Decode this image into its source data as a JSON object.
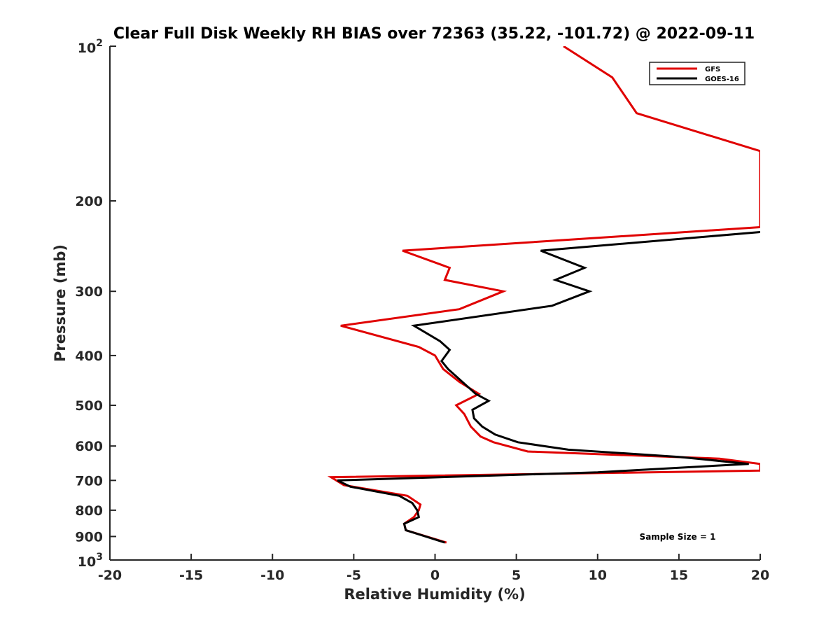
{
  "chart_data": {
    "type": "line",
    "title": "Clear Full Disk Weekly RH BIAS over 72363 (35.22, -101.72) @ 2022-09-11",
    "xlabel": "Relative Humidity (%)",
    "ylabel": "Pressure (mb)",
    "xlim": [
      -20,
      20
    ],
    "ylim": [
      100,
      1000
    ],
    "y_scale": "log",
    "y_reversed": true,
    "grid": false,
    "legend_position": "top-right",
    "x_ticks": [
      -20,
      -15,
      -10,
      -5,
      0,
      5,
      10,
      15,
      20
    ],
    "x_tick_labels": [
      "-20",
      "-15",
      "-10",
      "-5",
      "0",
      "5",
      "10",
      "15",
      "20"
    ],
    "y_ticks": [
      200,
      300,
      400,
      500,
      600,
      700,
      800,
      900
    ],
    "y_tick_labels": [
      "200",
      "300",
      "400",
      "500",
      "600",
      "700",
      "800",
      "900"
    ],
    "y_tick_exp": [
      {
        "value": 100,
        "base": "10",
        "exp": "2"
      },
      {
        "value": 1000,
        "base": "10",
        "exp": "3"
      }
    ],
    "annotation": "Sample Size = 1",
    "series": [
      {
        "name": "GFS",
        "color": "#e00000",
        "points": [
          {
            "x": 7.9,
            "y": 100
          },
          {
            "x": 10.9,
            "y": 115
          },
          {
            "x": 12.4,
            "y": 135
          },
          {
            "x": 20.0,
            "y": 160
          },
          {
            "x": 20.0,
            "y": 225
          },
          {
            "x": -2.0,
            "y": 250
          },
          {
            "x": 0.9,
            "y": 270
          },
          {
            "x": 0.6,
            "y": 285
          },
          {
            "x": 4.2,
            "y": 300
          },
          {
            "x": 1.5,
            "y": 325
          },
          {
            "x": -5.8,
            "y": 350
          },
          {
            "x": -1.0,
            "y": 385
          },
          {
            "x": 0.0,
            "y": 400
          },
          {
            "x": 0.5,
            "y": 425
          },
          {
            "x": 1.5,
            "y": 450
          },
          {
            "x": 2.7,
            "y": 475
          },
          {
            "x": 1.3,
            "y": 500
          },
          {
            "x": 1.8,
            "y": 520
          },
          {
            "x": 2.2,
            "y": 550
          },
          {
            "x": 2.8,
            "y": 575
          },
          {
            "x": 3.6,
            "y": 590
          },
          {
            "x": 5.7,
            "y": 615
          },
          {
            "x": 17.5,
            "y": 635
          },
          {
            "x": 20.0,
            "y": 650
          },
          {
            "x": 20.0,
            "y": 670
          },
          {
            "x": -6.4,
            "y": 690
          },
          {
            "x": -5.6,
            "y": 715
          },
          {
            "x": -1.7,
            "y": 750
          },
          {
            "x": -0.9,
            "y": 780
          },
          {
            "x": -1.0,
            "y": 800
          },
          {
            "x": -1.3,
            "y": 825
          },
          {
            "x": -1.9,
            "y": 850
          },
          {
            "x": -1.8,
            "y": 875
          },
          {
            "x": 0.7,
            "y": 925
          }
        ]
      },
      {
        "name": "GOES-16",
        "color": "#000000",
        "points": [
          {
            "x": 20.0,
            "y": 230
          },
          {
            "x": 6.5,
            "y": 250
          },
          {
            "x": 9.2,
            "y": 270
          },
          {
            "x": 7.4,
            "y": 285
          },
          {
            "x": 9.5,
            "y": 300
          },
          {
            "x": 7.2,
            "y": 320
          },
          {
            "x": -1.3,
            "y": 350
          },
          {
            "x": 0.3,
            "y": 375
          },
          {
            "x": 0.9,
            "y": 390
          },
          {
            "x": 0.4,
            "y": 410
          },
          {
            "x": 0.8,
            "y": 425
          },
          {
            "x": 2.5,
            "y": 475
          },
          {
            "x": 3.3,
            "y": 490
          },
          {
            "x": 2.3,
            "y": 510
          },
          {
            "x": 2.4,
            "y": 530
          },
          {
            "x": 2.9,
            "y": 550
          },
          {
            "x": 3.7,
            "y": 570
          },
          {
            "x": 5.1,
            "y": 590
          },
          {
            "x": 8.2,
            "y": 610
          },
          {
            "x": 15.0,
            "y": 630
          },
          {
            "x": 19.3,
            "y": 650
          },
          {
            "x": 10.0,
            "y": 675
          },
          {
            "x": -6.0,
            "y": 700
          },
          {
            "x": -5.2,
            "y": 720
          },
          {
            "x": -2.2,
            "y": 750
          },
          {
            "x": -1.4,
            "y": 775
          },
          {
            "x": -1.1,
            "y": 800
          },
          {
            "x": -1.0,
            "y": 825
          },
          {
            "x": -1.9,
            "y": 850
          },
          {
            "x": -1.8,
            "y": 875
          },
          {
            "x": 0.6,
            "y": 925
          }
        ]
      }
    ]
  }
}
